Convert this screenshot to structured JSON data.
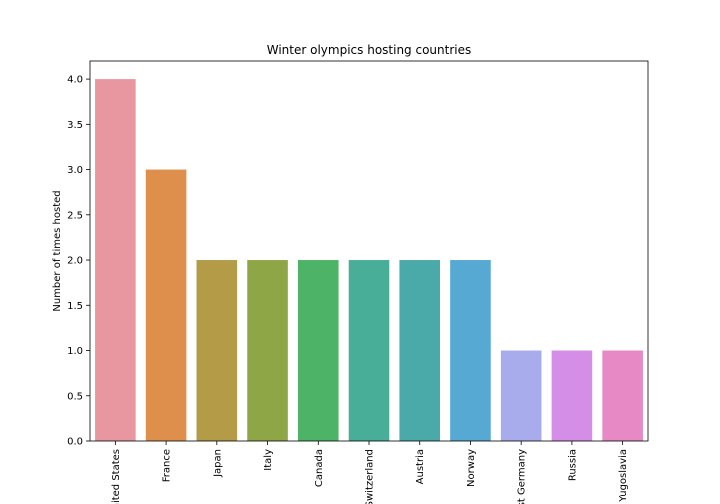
{
  "chart_data": {
    "type": "bar",
    "title": "Winter olympics hosting countries",
    "xlabel": "",
    "ylabel": "Number of times hosted",
    "categories": [
      "United States",
      "France",
      "Japan",
      "Italy",
      "Canada",
      "Switzerland",
      "Austria",
      "Norway",
      "West Germany",
      "Russia",
      "Yugoslavia"
    ],
    "values": [
      4,
      3,
      2,
      2,
      2,
      2,
      2,
      2,
      1,
      1,
      1
    ],
    "colors": [
      "#e8969f",
      "#de8f4b",
      "#b39b47",
      "#8ea645",
      "#4db467",
      "#48ae98",
      "#4aa9a9",
      "#55a9d3",
      "#a9acec",
      "#d58ee7",
      "#e789c4"
    ],
    "ylim": [
      0,
      4.2
    ],
    "yticks": [
      "0.0",
      "0.5",
      "1.0",
      "1.5",
      "2.0",
      "2.5",
      "3.0",
      "3.5",
      "4.0"
    ],
    "grid": false,
    "legend": "none",
    "x_tick_rotation": 90
  }
}
